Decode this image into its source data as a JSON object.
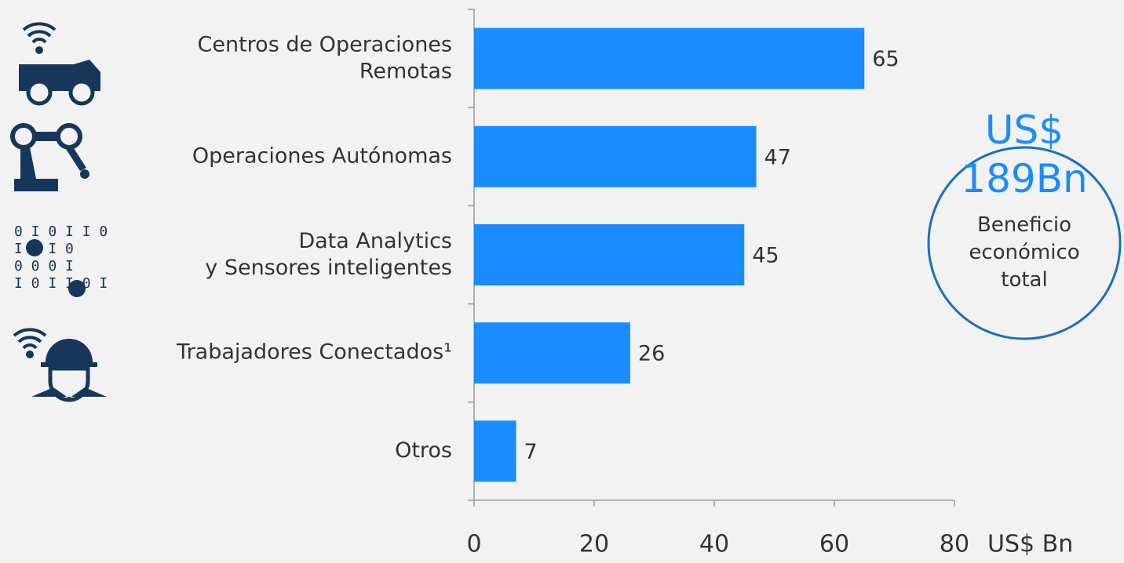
{
  "chart_data": {
    "type": "hbar",
    "categories": [
      "Centros de Operaciones\nRemotas",
      "Operaciones Autónomas",
      "Data Analytics\ny Sensores inteligentes",
      "Trabajadores Conectados¹",
      "Otros"
    ],
    "values": [
      65,
      47,
      45,
      26,
      7
    ],
    "color": "#1a8cff",
    "xlim": [
      0,
      80
    ],
    "xticks": [
      0,
      20,
      40,
      60,
      80
    ],
    "x_label": "US$ Bn",
    "callout": {
      "headline": "US$\n189Bn",
      "text": "Beneficio\neconómico\ntotal"
    }
  }
}
